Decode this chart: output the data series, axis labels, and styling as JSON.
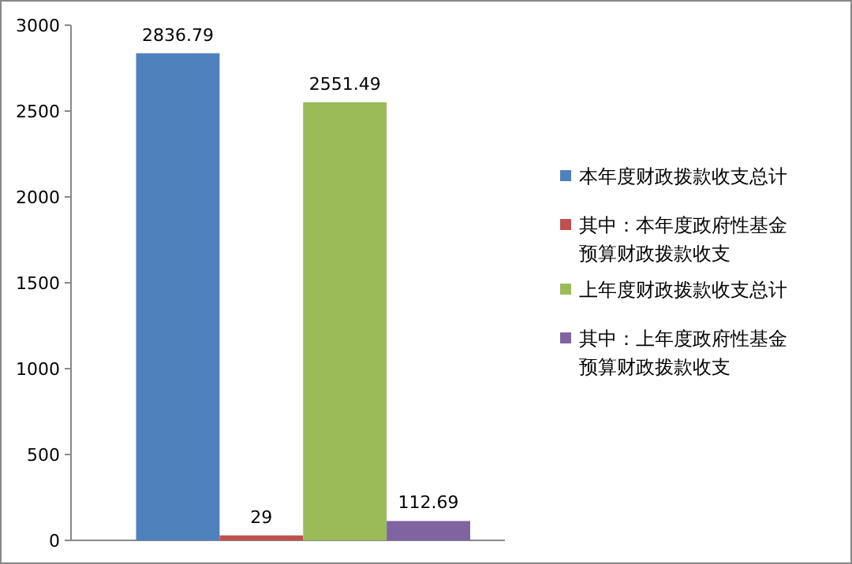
{
  "chart_data": {
    "type": "bar",
    "categories": [
      null
    ],
    "series": [
      {
        "name": "本年度财政拨款收支总计",
        "color": "#4f81bd",
        "values": [
          2836.79
        ]
      },
      {
        "name": "其中：本年度政府性基金预算财政拨款收支",
        "color": "#c0504d",
        "values": [
          29
        ]
      },
      {
        "name": "上年度财政拨款收支总计",
        "color": "#9bbb59",
        "values": [
          2551.49
        ]
      },
      {
        "name": "其中：上年度政府性基金预算财政拨款收支",
        "color": "#8064a2",
        "values": [
          112.69
        ]
      }
    ],
    "ylim": [
      0,
      3000
    ],
    "yticks": [
      0,
      500,
      1000,
      1500,
      2000,
      2500,
      3000
    ],
    "data_labels": true,
    "legend": "right"
  }
}
